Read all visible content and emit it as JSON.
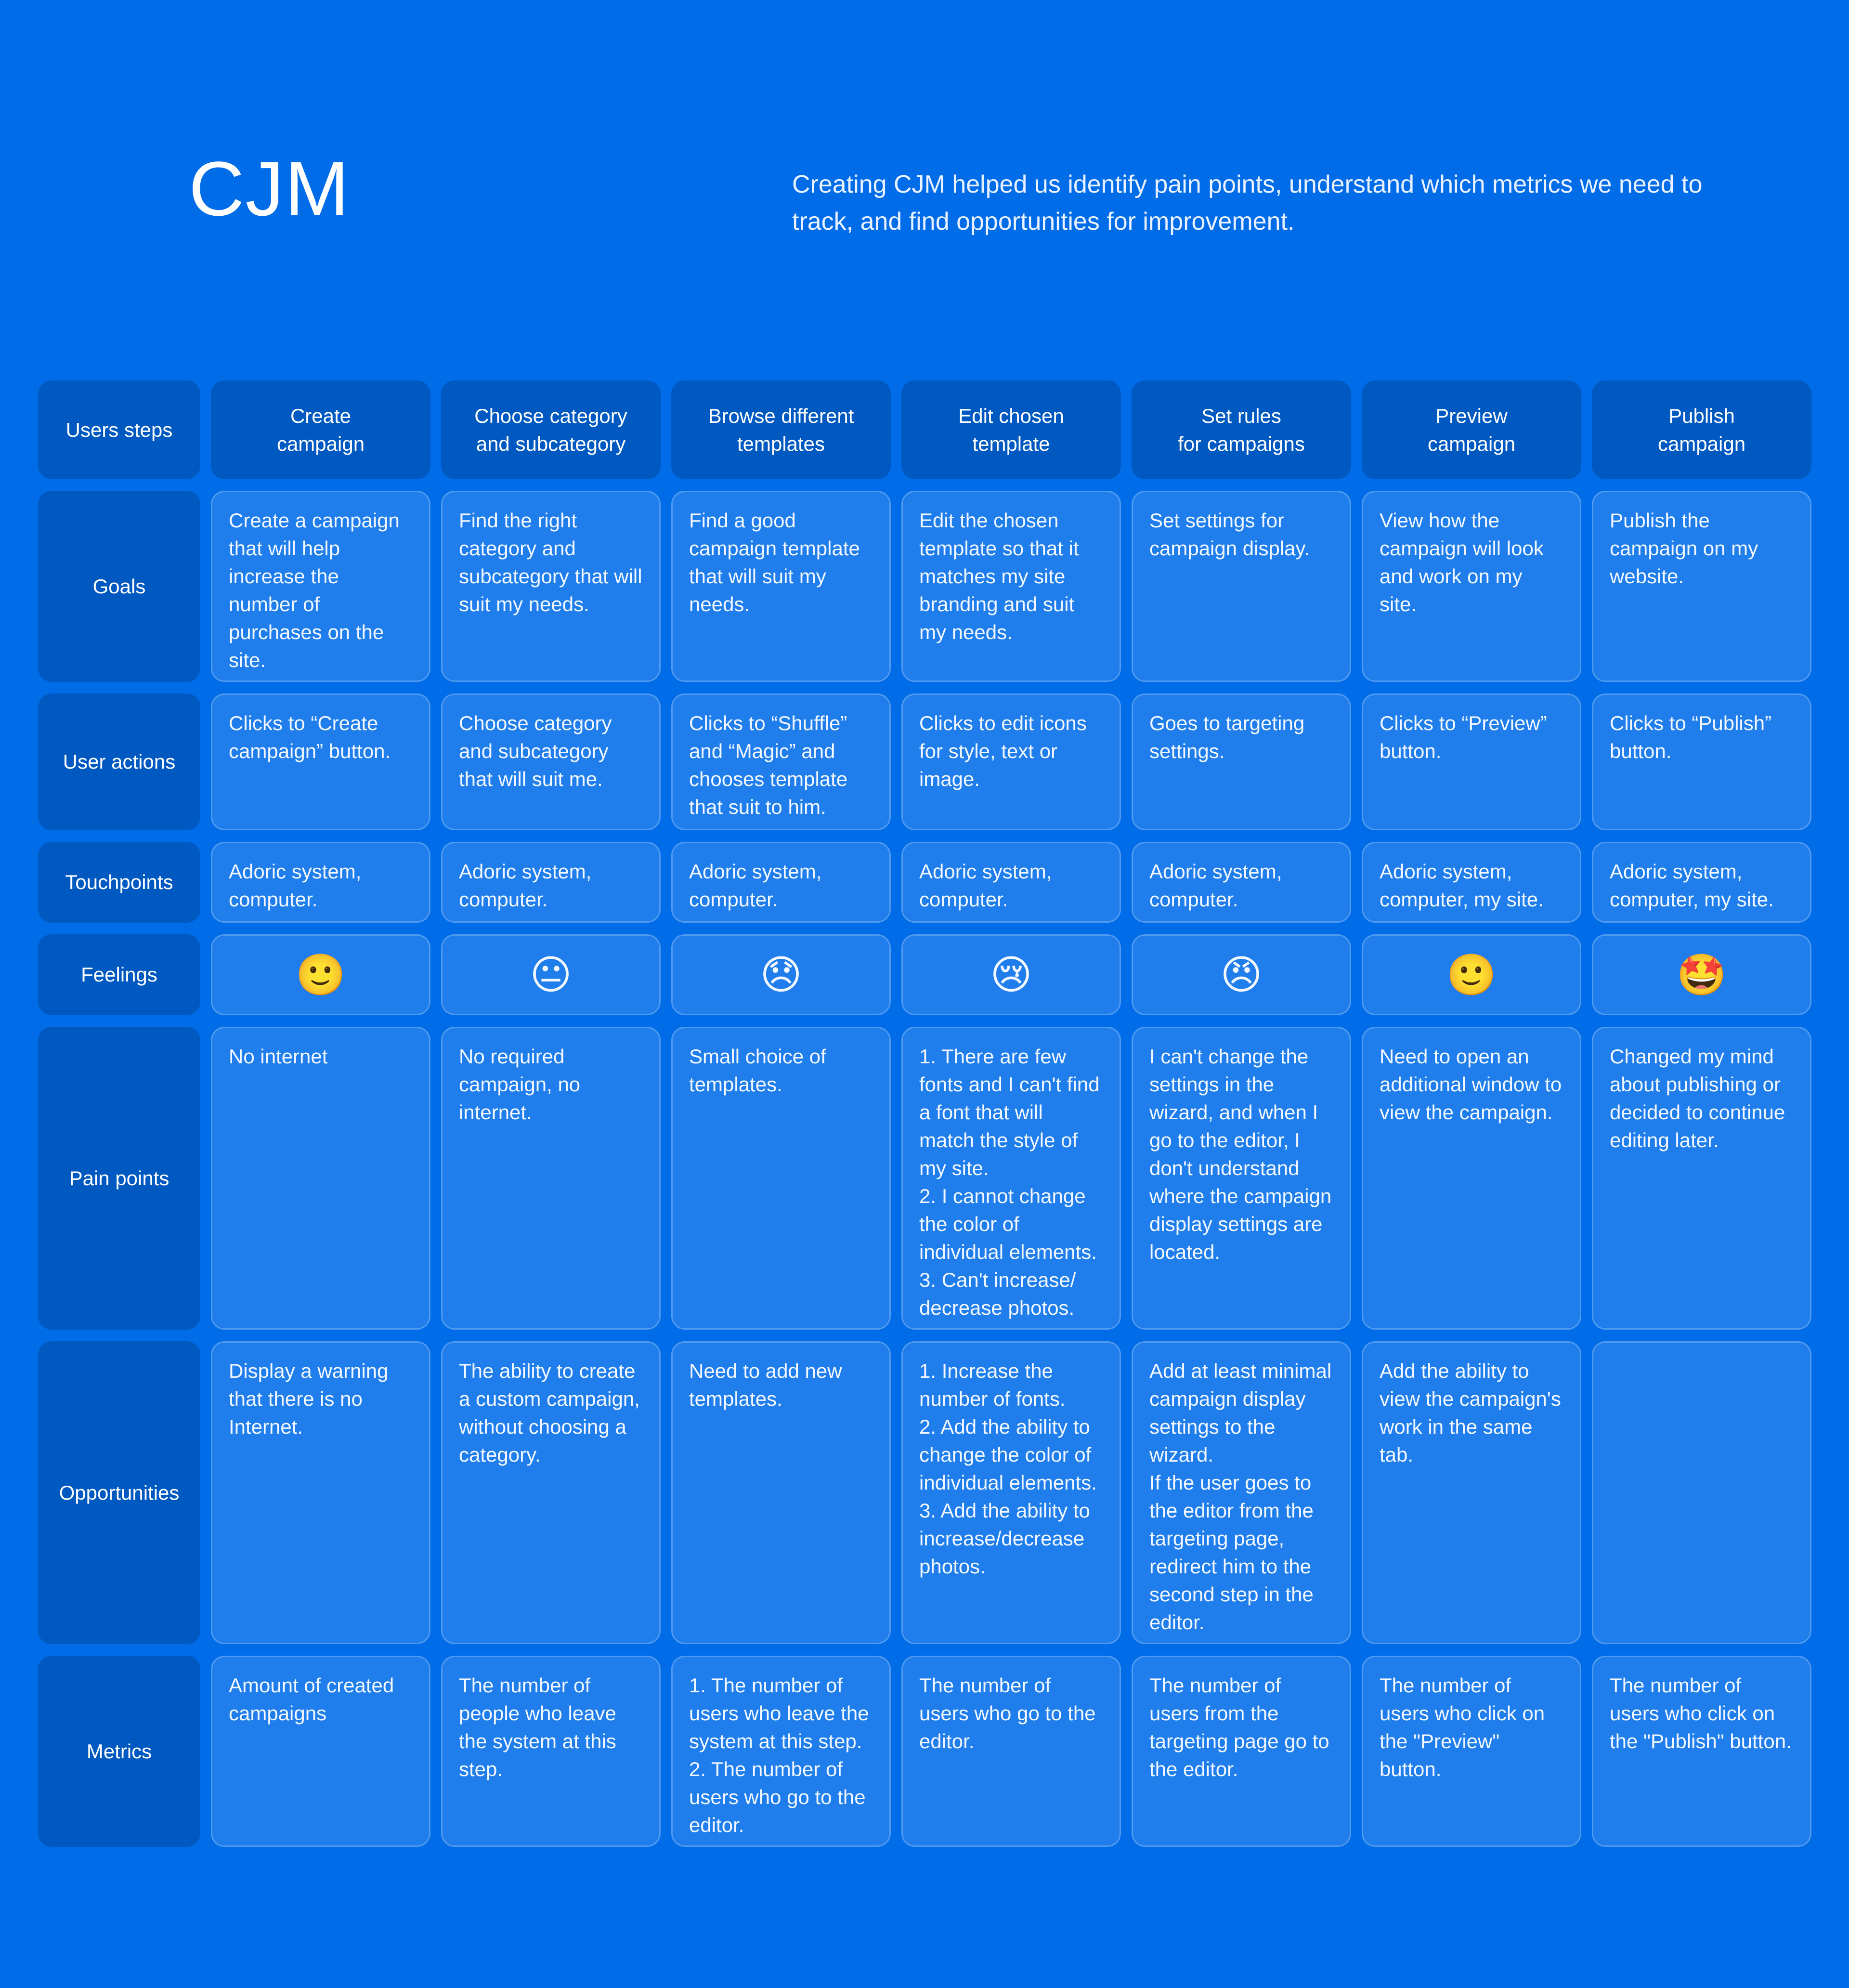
{
  "title": "CJM",
  "subtitle": "Creating CJM helped us identify pain points, understand which metrics we need to track, and find opportunities for improvement.",
  "corner_label": "Users steps",
  "steps": [
    "Create\ncampaign",
    "Choose category\nand subcategory",
    "Browse different\ntemplates",
    "Edit chosen\ntemplate",
    "Set rules\nfor campaigns",
    "Preview\ncampaign",
    "Publish\ncampaign"
  ],
  "rows": [
    {
      "label": "Goals",
      "cells": [
        "Create a campaign that will help increase the number of purchases on the site.",
        "Find the right category and subcategory that will suit my needs.",
        "Find a good campaign template that will suit my needs.",
        "Edit the chosen template so that it matches my site branding and suit my needs.",
        "Set settings for campaign display.",
        "View how the campaign will look and work on my site.",
        "Publish the campaign on my website."
      ]
    },
    {
      "label": "User actions",
      "cells": [
        "Clicks to “Create campaign” button.",
        "Choose category and subcategory that will suit me.",
        "Clicks to “Shuffle” and “Magic” and chooses template that suit to him.",
        "Clicks to edit icons for style, text or image.",
        "Goes to targeting settings.",
        "Clicks to “Preview” button.",
        "Clicks to “Publish” button."
      ]
    },
    {
      "label": "Touchpoints",
      "cells": [
        "Adoric system, computer.",
        "Adoric system, computer.",
        "Adoric system, computer.",
        "Adoric system, computer.",
        "Adoric system, computer.",
        "Adoric system, computer, my site.",
        "Adoric system, computer, my site."
      ]
    },
    {
      "label": "Feelings",
      "feelings": true,
      "cells": [
        "🙂",
        "😐",
        "😞",
        "😢",
        "😠",
        "🙂",
        "🤩"
      ],
      "icons": [
        "slightly-smiling-face-icon",
        "neutral-face-icon",
        "disappointed-face-icon",
        "crying-face-icon",
        "angry-face-icon",
        "slightly-smiling-face-icon",
        "star-struck-face-icon"
      ]
    },
    {
      "label": "Pain points",
      "cells": [
        "No internet",
        "No required campaign, no internet.",
        "Small choice of templates.",
        "1. There are few fonts and I can't find a font that will match the style of my site.\n2. I cannot change the color of individual elements.\n3. Can't increase/ decrease photos.",
        "I can't change the settings in the wizard, and when I go to the editor, I don't understand where the campaign display settings are located.",
        "Need to open an additional window to view the campaign.",
        "Changed my mind about publishing or decided to continue editing later."
      ]
    },
    {
      "label": "Opportunities",
      "cells": [
        "Display a warning that there is no Internet.",
        "The ability to create a custom campaign, without choosing a category.",
        "Need to add new templates.",
        "1. Increase the number of fonts.\n2. Add the ability to change the color of individual elements.\n3. Add the ability to increase/decrease photos.",
        "Add at least minimal campaign display settings to the wizard.\nIf the user goes to the editor from the targeting page, redirect him to the second step in the editor.",
        "Add the ability to view the campaign's work in the same tab.",
        ""
      ]
    },
    {
      "label": "Metrics",
      "cells": [
        "Amount of created campaigns",
        "The number of people who leave the system at this step.",
        "1. The number of users who leave the system at this step.\n2. The number of users who go to the editor.",
        "The number of users who go to the editor.",
        "The number of users from the targeting page go to the editor.",
        "The number of users who click on the \"Preview\" button.",
        "The number of users who click on the \"Publish\" button."
      ]
    }
  ],
  "colors": {
    "background": "#006ce8",
    "label_cell": "#0059c0",
    "content_cell": "#1f7eeb"
  }
}
